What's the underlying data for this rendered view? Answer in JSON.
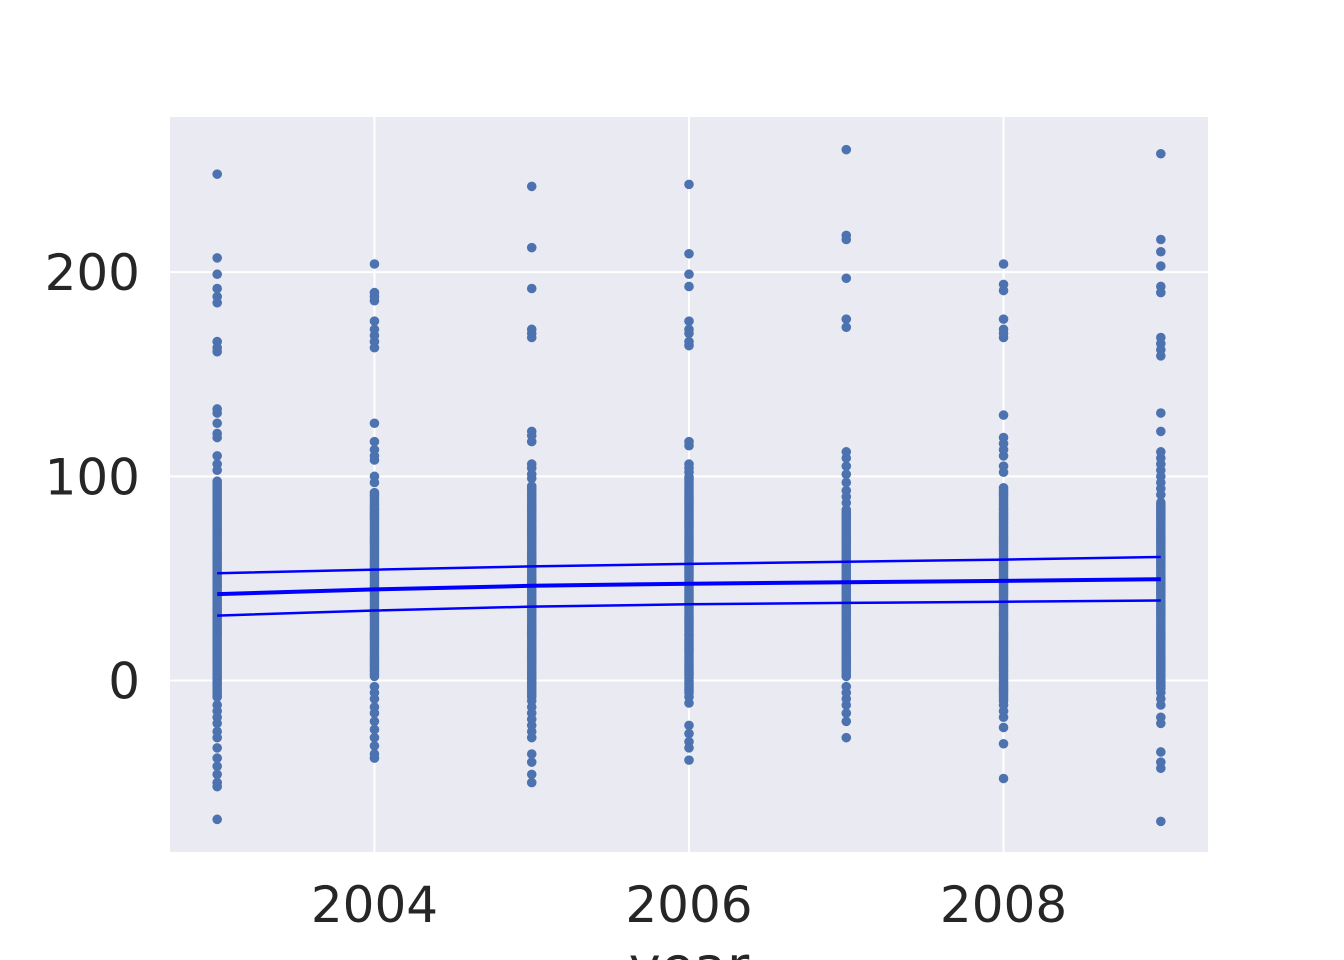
{
  "chart_data": {
    "type": "scatter",
    "title": "",
    "xlabel": "year",
    "ylabel": "",
    "xlim": [
      2002.7,
      2009.3
    ],
    "ylim": [
      -84,
      276
    ],
    "x_ticks": [
      2004,
      2006,
      2008
    ],
    "x_tick_labels": [
      "2004",
      "2006",
      "2008"
    ],
    "y_ticks": [
      0,
      100,
      200
    ],
    "y_tick_labels": [
      "0",
      "100",
      "200"
    ],
    "grid": true,
    "legend": "none",
    "colors": {
      "background": "#eaeaf2",
      "grid": "#ffffff",
      "points": "#4c72b0",
      "lines": "#0000ff"
    },
    "scatter": {
      "groups": [
        {
          "x": 2003,
          "dense": [
            -8,
            98
          ],
          "outliers": [
            248,
            207,
            199,
            192,
            188,
            185,
            166,
            163,
            161,
            133,
            131,
            126,
            121,
            119,
            110,
            106,
            103,
            -8,
            -12,
            -15,
            -18,
            -21,
            -25,
            -28,
            -33,
            -38,
            -42,
            -46,
            -50,
            -52,
            -68
          ]
        },
        {
          "x": 2004,
          "dense": [
            2,
            93
          ],
          "outliers": [
            204,
            190,
            188,
            186,
            176,
            172,
            169,
            166,
            163,
            126,
            117,
            113,
            110,
            108,
            100,
            97,
            -3,
            -6,
            -9,
            -13,
            -16,
            -20,
            -24,
            -28,
            -32,
            -36,
            -38
          ]
        },
        {
          "x": 2005,
          "dense": [
            -8,
            96
          ],
          "outliers": [
            242,
            212,
            192,
            172,
            170,
            168,
            122,
            120,
            117,
            106,
            104,
            101,
            99,
            -10,
            -13,
            -16,
            -19,
            -22,
            -25,
            -28,
            -36,
            -40,
            -46,
            -50
          ]
        },
        {
          "x": 2006,
          "dense": [
            -6,
            100
          ],
          "outliers": [
            243,
            209,
            199,
            193,
            176,
            172,
            170,
            166,
            164,
            117,
            115,
            106,
            104,
            102,
            -8,
            -11,
            -22,
            -26,
            -30,
            -33,
            -39
          ]
        },
        {
          "x": 2007,
          "dense": [
            2,
            84
          ],
          "outliers": [
            260,
            218,
            216,
            197,
            177,
            173,
            112,
            109,
            105,
            101,
            97,
            93,
            90,
            87,
            -3,
            -6,
            -9,
            -12,
            -16,
            -20,
            -28
          ]
        },
        {
          "x": 2008,
          "dense": [
            -10,
            95
          ],
          "outliers": [
            204,
            194,
            191,
            177,
            172,
            170,
            168,
            130,
            119,
            116,
            113,
            110,
            105,
            102,
            -12,
            -15,
            -18,
            -23,
            -31,
            -48
          ]
        },
        {
          "x": 2009,
          "dense": [
            -4,
            88
          ],
          "outliers": [
            258,
            216,
            210,
            203,
            193,
            190,
            168,
            165,
            162,
            159,
            131,
            122,
            112,
            109,
            106,
            103,
            100,
            97,
            94,
            91,
            -6,
            -9,
            -12,
            -18,
            -21,
            -35,
            -40,
            -43,
            -69
          ]
        }
      ]
    },
    "series": [
      {
        "style": "band-upper",
        "x": [
          2003,
          2004,
          2005,
          2006,
          2007,
          2008,
          2009
        ],
        "y": [
          52.5,
          54.3,
          55.9,
          57.1,
          58.2,
          59.2,
          60.5
        ]
      },
      {
        "style": "fit",
        "x": [
          2003,
          2004,
          2005,
          2006,
          2007,
          2008,
          2009
        ],
        "y": [
          42.3,
          44.6,
          46.4,
          47.4,
          48.1,
          48.8,
          49.6
        ]
      },
      {
        "style": "band-lower",
        "x": [
          2003,
          2004,
          2005,
          2006,
          2007,
          2008,
          2009
        ],
        "y": [
          31.8,
          34.3,
          36.2,
          37.3,
          38.0,
          38.6,
          39.2
        ]
      }
    ]
  }
}
